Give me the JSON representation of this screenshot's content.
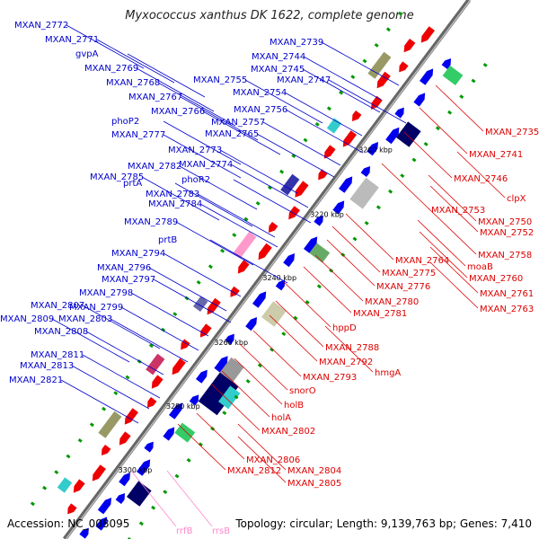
{
  "title": "Myxococcus xanthus DK 1622, complete genome",
  "footer": {
    "accession": "Accession: NC_008095",
    "summary": "Topology: circular; Length: 9,139,763 bp; Genes: 7,410"
  },
  "colors": {
    "forward_label": "#0000cc",
    "reverse_label": "#dd0000",
    "rna_label": "#ff88cc",
    "forward_gene": "#0000ee",
    "reverse_gene": "#ee0000",
    "backbone": "#888888"
  },
  "scale_marks": [
    "3200 kbp",
    "3220 kbp",
    "3240 kbp",
    "3260 kbp",
    "3280 kbp",
    "3300 kbp"
  ],
  "left_labels": [
    "MXAN_2772",
    "MXAN_2771",
    "gvpA",
    "MXAN_2769",
    "MXAN_2768",
    "MXAN_2767",
    "MXAN_2766",
    "phoP2",
    "MXAN_2777",
    "MXAN_2773",
    "MXAN_2782",
    "MXAN_2774",
    "MXAN_2785",
    "phoR2",
    "MXAN_2783",
    "prtA",
    "MXAN_2784",
    "MXAN_2789",
    "prtB",
    "MXAN_2794",
    "MXAN_2796",
    "MXAN_2797",
    "MXAN_2798",
    "MXAN_2807",
    "MXAN_2799",
    "MXAN_2809",
    "MXAN_2803",
    "MXAN_2808",
    "MXAN_2811",
    "MXAN_2813",
    "MXAN_2821",
    "MXAN_2739",
    "MXAN_2744",
    "MXAN_2745",
    "MXAN_2747",
    "MXAN_2755",
    "MXAN_2754",
    "MXAN_2756",
    "MXAN_2757",
    "MXAN_2765"
  ],
  "right_labels": [
    "MXAN_2735",
    "MXAN_2741",
    "MXAN_2746",
    "clpX",
    "MXAN_2753",
    "MXAN_2750",
    "MXAN_2752",
    "MXAN_2758",
    "moaB",
    "MXAN_2764",
    "MXAN_2760",
    "MXAN_2775",
    "MXAN_2761",
    "MXAN_2776",
    "MXAN_2763",
    "MXAN_2780",
    "MXAN_2781",
    "hppD",
    "MXAN_2788",
    "MXAN_2792",
    "hmgA",
    "MXAN_2793",
    "snorO",
    "holB",
    "holA",
    "MXAN_2802",
    "MXAN_2806",
    "MXAN_2804",
    "MXAN_2812",
    "MXAN_2805"
  ],
  "rna_labels": [
    "rrfB",
    "rrsB"
  ]
}
